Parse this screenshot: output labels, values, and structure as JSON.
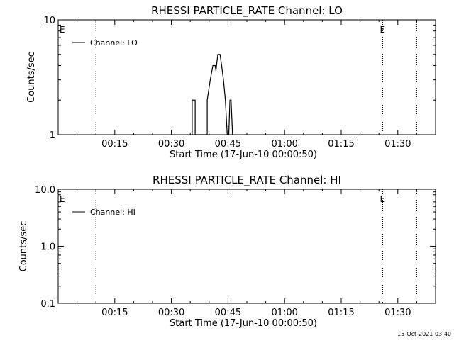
{
  "footer_timestamp": "15-Oct-2021 03:40",
  "chart_data": [
    {
      "type": "line",
      "title": "RHESSI PARTICLE_RATE Channel: LO",
      "xlabel": "Start Time (17-Jun-10 00:00:50)",
      "ylabel": "Counts/sec",
      "x_unit": "minutes",
      "xlim": [
        0,
        100
      ],
      "yscale": "log",
      "ylim": [
        1,
        10
      ],
      "yticks": [
        1,
        10
      ],
      "ytick_labels": [
        "1",
        "10"
      ],
      "xticks": [
        15,
        30,
        45,
        60,
        75,
        90
      ],
      "xtick_labels": [
        "00:15",
        "00:30",
        "00:45",
        "01:00",
        "01:15",
        "01:30"
      ],
      "legend": {
        "position": "top-left",
        "label": "Channel: LO"
      },
      "vlines": [
        10,
        86,
        95
      ],
      "markers": [
        {
          "x": 0,
          "label": "E"
        },
        {
          "x": 86,
          "label": "E"
        }
      ],
      "series": [
        {
          "name": "Channel: LO",
          "points": [
            [
              35.5,
              1
            ],
            [
              35.5,
              2
            ],
            [
              36.3,
              2
            ],
            [
              36.3,
              1
            ],
            [
              39.5,
              1
            ],
            [
              39.5,
              2
            ],
            [
              40.3,
              3
            ],
            [
              41.0,
              4
            ],
            [
              41.6,
              4
            ],
            [
              41.8,
              3.6
            ],
            [
              42.3,
              5
            ],
            [
              42.9,
              5
            ],
            [
              43.3,
              4
            ],
            [
              43.8,
              3
            ],
            [
              44.3,
              2
            ],
            [
              44.8,
              1
            ]
          ]
        },
        {
          "name": "",
          "points": [
            [
              45.2,
              1
            ],
            [
              45.5,
              2
            ],
            [
              45.8,
              2
            ],
            [
              46.2,
              1
            ]
          ]
        }
      ]
    },
    {
      "type": "line",
      "title": "RHESSI PARTICLE_RATE Channel: HI",
      "xlabel": "Start Time (17-Jun-10 00:00:50)",
      "ylabel": "Counts/sec",
      "x_unit": "minutes",
      "xlim": [
        0,
        100
      ],
      "yscale": "log",
      "ylim": [
        0.1,
        10
      ],
      "yticks": [
        0.1,
        1,
        10
      ],
      "ytick_labels": [
        "0.1",
        "1.0",
        "10.0"
      ],
      "xticks": [
        15,
        30,
        45,
        60,
        75,
        90
      ],
      "xtick_labels": [
        "00:15",
        "00:30",
        "00:45",
        "01:00",
        "01:15",
        "01:30"
      ],
      "legend": {
        "position": "top-left",
        "label": "Channel: HI"
      },
      "vlines": [
        10,
        86,
        95
      ],
      "markers": [
        {
          "x": 0,
          "label": "E"
        },
        {
          "x": 86,
          "label": "E"
        }
      ],
      "series": [
        {
          "name": "Channel: HI",
          "points": []
        }
      ]
    }
  ]
}
